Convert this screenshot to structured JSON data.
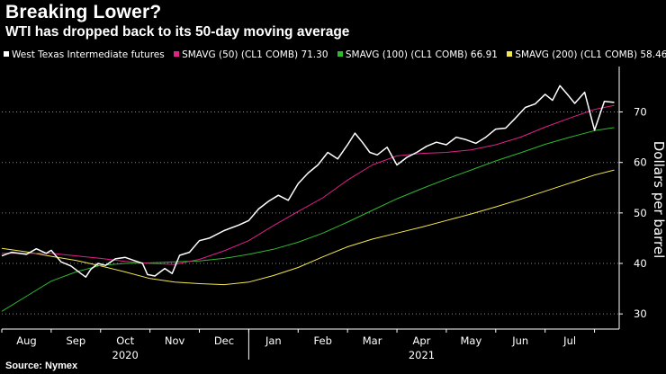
{
  "header": {
    "title": "Breaking Lower?",
    "subtitle": "WTI has dropped back to its 50-day moving average"
  },
  "legend": {
    "items": [
      {
        "label": "West Texas Intermediate futures",
        "color": "#ffffff"
      },
      {
        "label": "SMAVG (50) (CL1 COMB) 71.30",
        "color": "#e0218a"
      },
      {
        "label": "SMAVG (100) (CL1 COMB) 66.91",
        "color": "#2fb92f"
      },
      {
        "label": "SMAVG (200) (CL1 COMB) 58.46",
        "color": "#f2e84b"
      }
    ]
  },
  "footer": {
    "source": "Source: Nymex"
  },
  "chart_data": {
    "type": "line",
    "title": "Breaking Lower?",
    "subtitle": "WTI has dropped back to its 50-day moving average",
    "xlabel": "",
    "ylabel": "Dollars per barrel",
    "ylim": [
      27,
      79
    ],
    "x_range": [
      0,
      12.5
    ],
    "yticks": [
      30,
      40,
      50,
      60,
      70
    ],
    "grid": {
      "y": true,
      "x": false,
      "style": "dotted"
    },
    "legend_position": "top-left",
    "months": [
      {
        "label": "Aug",
        "pos": 0.5
      },
      {
        "label": "Sep",
        "pos": 1.5
      },
      {
        "label": "Oct",
        "pos": 2.5
      },
      {
        "label": "Nov",
        "pos": 3.5
      },
      {
        "label": "Dec",
        "pos": 4.5
      },
      {
        "label": "Jan",
        "pos": 5.5
      },
      {
        "label": "Feb",
        "pos": 6.5
      },
      {
        "label": "Mar",
        "pos": 7.5
      },
      {
        "label": "Apr",
        "pos": 8.5
      },
      {
        "label": "May",
        "pos": 9.5
      },
      {
        "label": "Jun",
        "pos": 10.5
      },
      {
        "label": "Jul",
        "pos": 11.5
      }
    ],
    "month_boundaries": [
      0,
      1,
      2,
      3,
      4,
      5,
      6,
      7,
      8,
      9,
      10,
      11,
      12
    ],
    "years": [
      {
        "label": "2020",
        "pos": 2.5
      },
      {
        "label": "2021",
        "pos": 8.5
      }
    ],
    "year_boundary": 5,
    "series": [
      {
        "name": "West Texas Intermediate futures",
        "color": "#ffffff",
        "x": [
          0,
          0.2,
          0.5,
          0.7,
          0.9,
          1.0,
          1.2,
          1.4,
          1.6,
          1.7,
          1.8,
          1.95,
          2.1,
          2.3,
          2.5,
          2.7,
          2.85,
          2.95,
          3.1,
          3.3,
          3.45,
          3.6,
          3.8,
          4.0,
          4.2,
          4.5,
          4.8,
          5.0,
          5.2,
          5.4,
          5.6,
          5.8,
          6.0,
          6.2,
          6.4,
          6.6,
          6.8,
          7.0,
          7.15,
          7.3,
          7.45,
          7.6,
          7.8,
          8.0,
          8.2,
          8.4,
          8.6,
          8.8,
          9.0,
          9.2,
          9.4,
          9.6,
          9.8,
          10.0,
          10.2,
          10.4,
          10.6,
          10.8,
          11.0,
          11.15,
          11.3,
          11.45,
          11.6,
          11.8,
          12.0,
          12.2,
          12.4
        ],
        "values": [
          41.5,
          42.2,
          41.8,
          42.9,
          42.0,
          42.6,
          40.3,
          39.5,
          38.0,
          37.3,
          38.8,
          40.0,
          39.6,
          40.9,
          41.2,
          40.5,
          40.0,
          37.8,
          37.5,
          39.0,
          38.0,
          41.6,
          42.2,
          44.5,
          45.0,
          46.5,
          47.6,
          48.5,
          50.8,
          52.3,
          53.5,
          52.5,
          55.8,
          57.9,
          59.5,
          62.0,
          60.7,
          63.5,
          65.8,
          64.0,
          62.0,
          61.5,
          63.0,
          59.5,
          61.0,
          62.0,
          63.2,
          64.0,
          63.5,
          65.0,
          64.5,
          63.8,
          65.0,
          66.6,
          66.8,
          68.8,
          70.9,
          71.6,
          73.5,
          72.3,
          75.2,
          73.5,
          71.7,
          73.9,
          66.4,
          72.1,
          71.9
        ]
      },
      {
        "name": "SMAVG (50) (CL1 COMB) 71.30",
        "color": "#e0218a",
        "x": [
          0,
          1,
          2,
          2.5,
          3,
          3.5,
          4,
          4.5,
          5,
          5.5,
          6,
          6.5,
          7,
          7.5,
          8,
          8.5,
          9,
          9.5,
          10,
          10.5,
          11,
          11.5,
          12,
          12.4
        ],
        "values": [
          42.0,
          42.0,
          41.0,
          40.4,
          40.0,
          39.8,
          40.8,
          42.5,
          44.5,
          47.5,
          50.3,
          53.0,
          56.5,
          59.5,
          61.3,
          61.8,
          62.0,
          62.5,
          63.5,
          65.0,
          67.0,
          68.8,
          70.5,
          71.3
        ]
      },
      {
        "name": "SMAVG (100) (CL1 COMB) 66.91",
        "color": "#2fb92f",
        "x": [
          0,
          0.5,
          1,
          1.5,
          2,
          2.5,
          3,
          3.5,
          4,
          4.5,
          5,
          5.5,
          6,
          6.5,
          7,
          7.5,
          8,
          8.5,
          9,
          9.5,
          10,
          10.5,
          11,
          11.5,
          12,
          12.4
        ],
        "values": [
          30.5,
          33.5,
          36.5,
          38.3,
          39.6,
          40.0,
          40.1,
          40.3,
          40.5,
          41.0,
          41.8,
          42.8,
          44.2,
          46.0,
          48.2,
          50.5,
          52.8,
          54.8,
          56.7,
          58.5,
          60.3,
          61.9,
          63.6,
          65.0,
          66.3,
          66.9
        ]
      },
      {
        "name": "SMAVG (200) (CL1 COMB) 58.46",
        "color": "#f2e84b",
        "x": [
          0,
          0.5,
          1,
          1.5,
          2,
          2.5,
          3,
          3.5,
          4,
          4.5,
          5,
          5.5,
          6,
          6.5,
          7,
          7.5,
          8,
          8.5,
          9,
          9.5,
          10,
          10.5,
          11,
          11.5,
          12,
          12.4
        ],
        "values": [
          43.0,
          42.3,
          41.4,
          40.6,
          39.5,
          38.3,
          37.0,
          36.3,
          36.0,
          35.8,
          36.3,
          37.6,
          39.2,
          41.3,
          43.3,
          44.8,
          46.0,
          47.2,
          48.5,
          49.8,
          51.2,
          52.7,
          54.3,
          55.9,
          57.5,
          58.5
        ]
      }
    ]
  }
}
